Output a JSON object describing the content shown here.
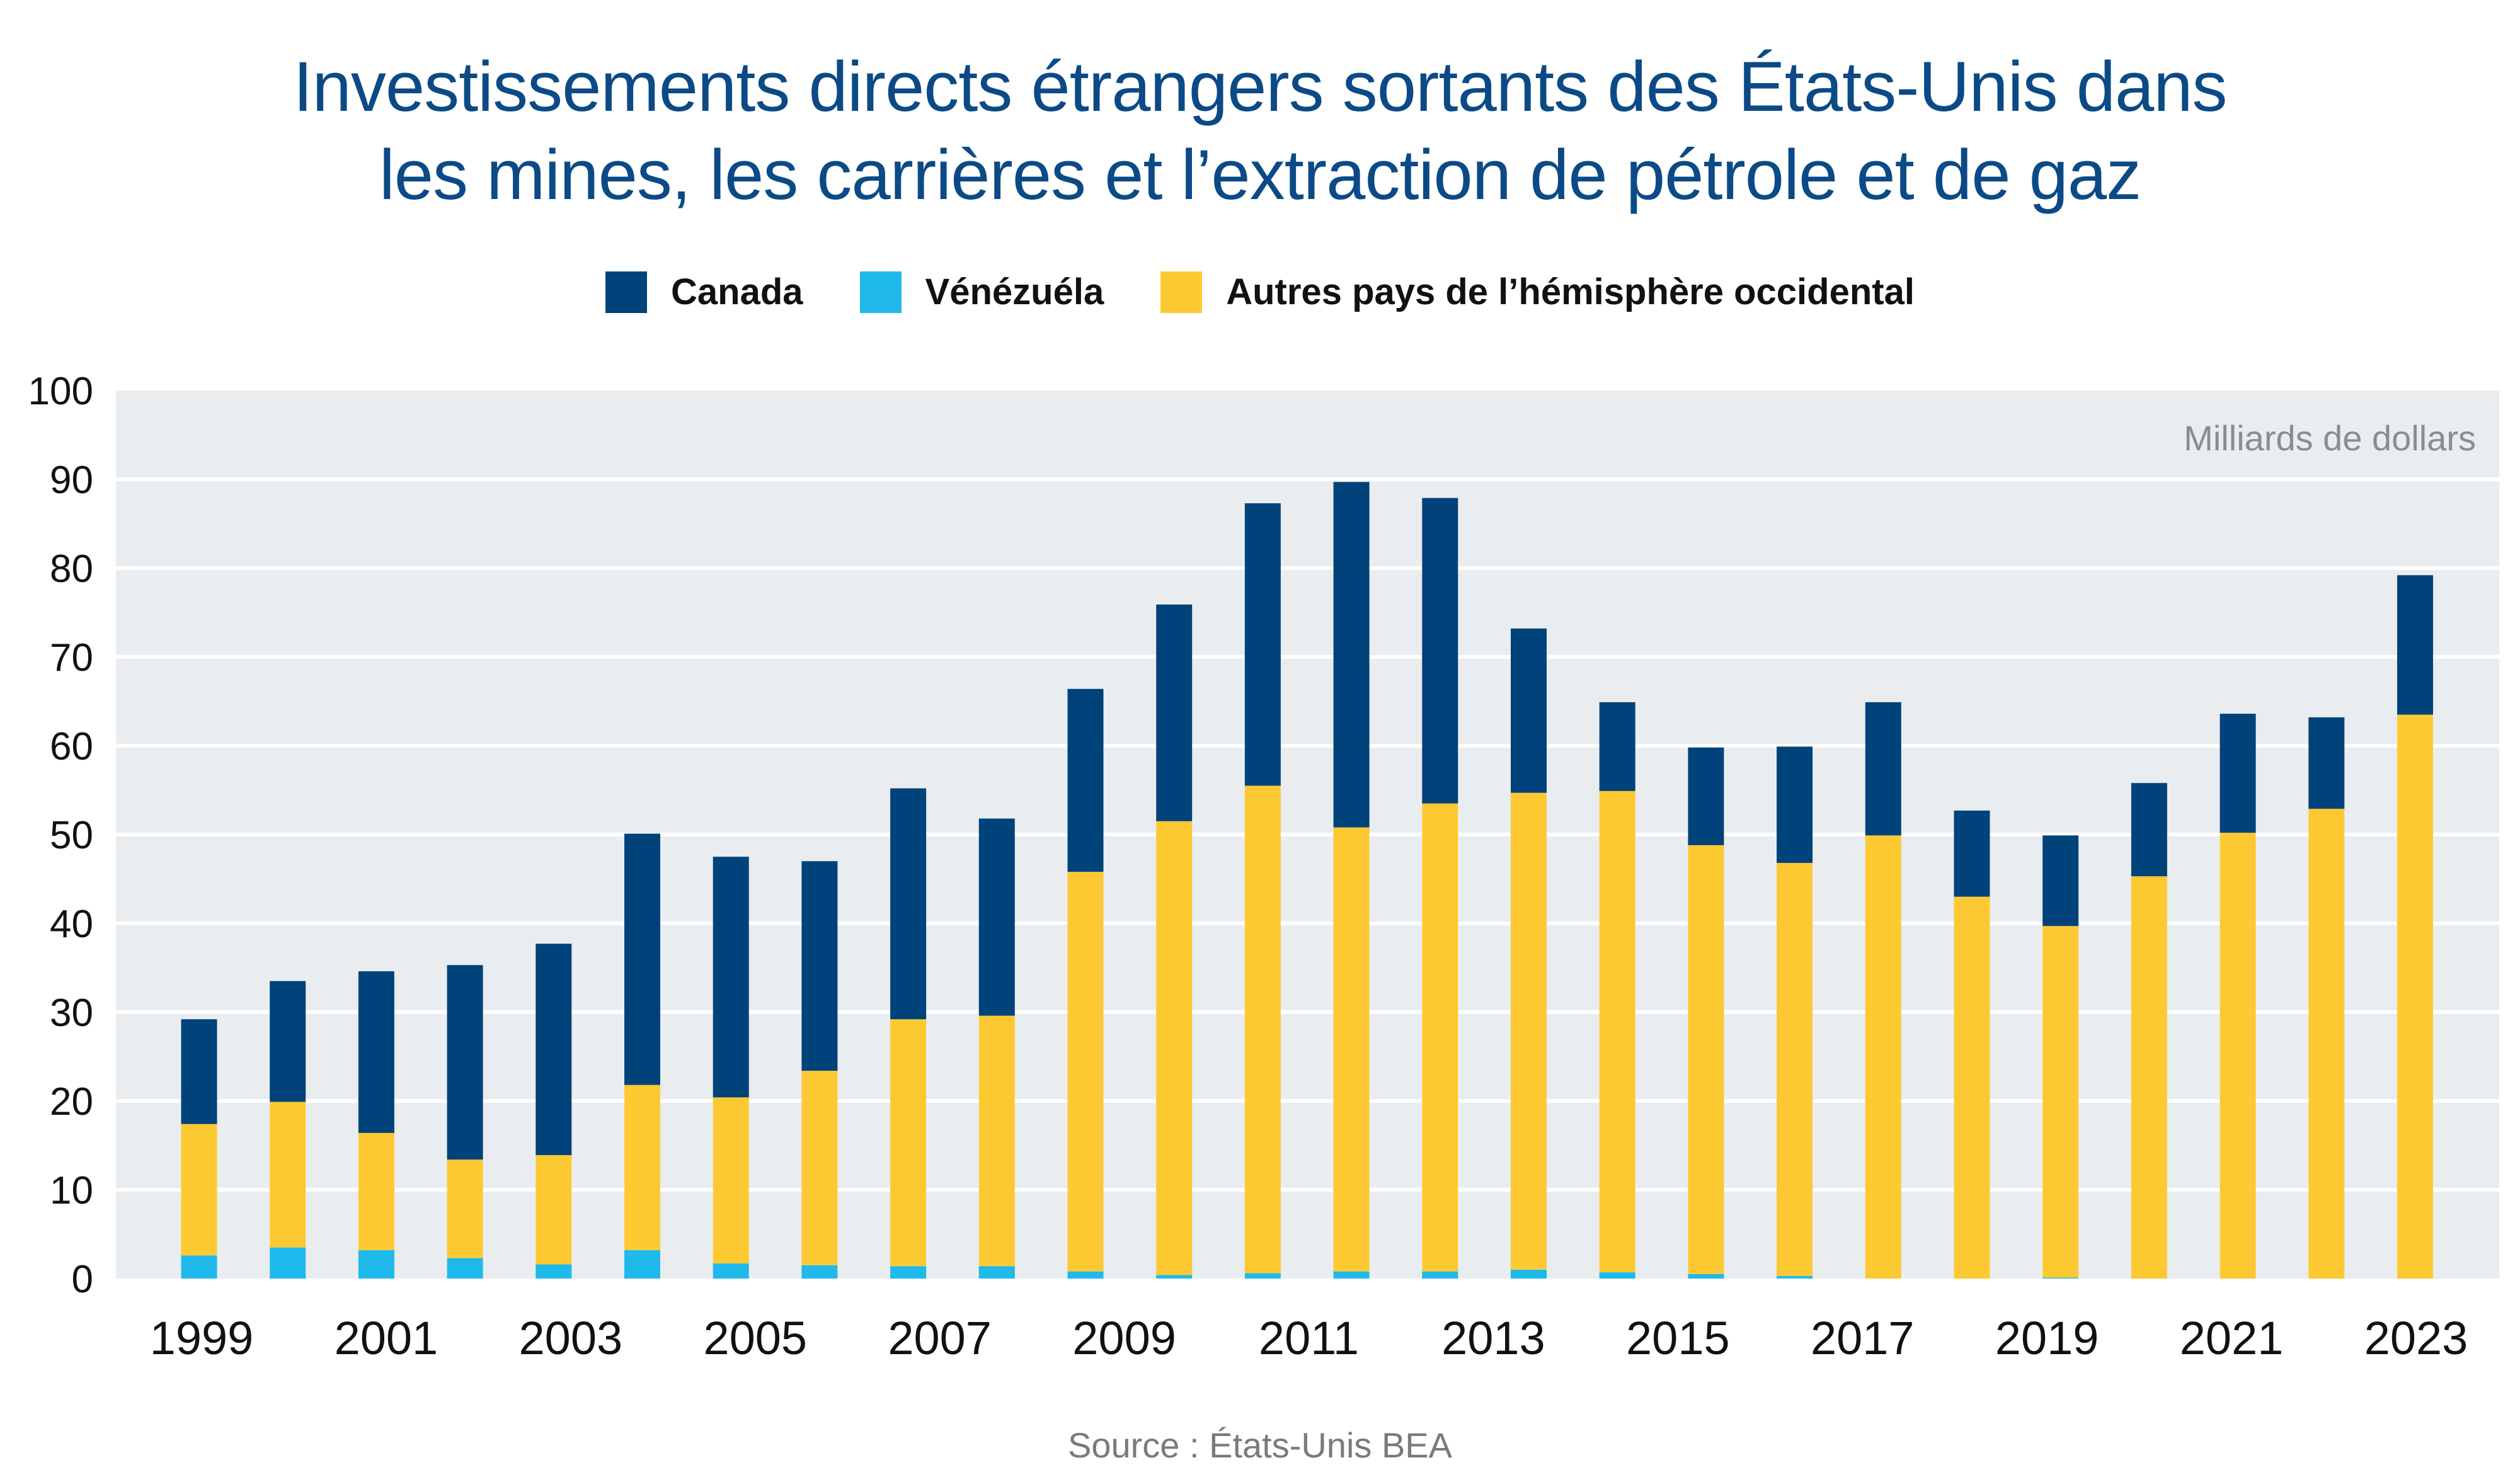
{
  "title_lines": [
    "Investissements directs étrangers sortants des États-Unis dans",
    "les mines, les carrières et l’extraction de pétrole et de gaz"
  ],
  "source": "Source : États-Unis BEA",
  "chart_data": {
    "type": "bar",
    "stacked": true,
    "title": "Investissements directs étrangers sortants des États-Unis dans les mines, les carrières et l’extraction de pétrole et de gaz",
    "unit_label": "Milliards de dollars",
    "ylim": [
      0,
      100
    ],
    "y_ticks": [
      0,
      10,
      20,
      30,
      40,
      50,
      60,
      70,
      80,
      90,
      100
    ],
    "x_tick_labels": [
      "1999",
      "2001",
      "2003",
      "2005",
      "2007",
      "2009",
      "2011",
      "2013",
      "2015",
      "2017",
      "2019",
      "2021",
      "2023"
    ],
    "grid": true,
    "legend_placement": "top",
    "series": [
      {
        "name": "Vénézuéla",
        "color": "#1fb9ec",
        "values": [
          2.6,
          3.5,
          3.2,
          2.3,
          1.6,
          3.2,
          1.7,
          1.5,
          1.4,
          1.4,
          0.8,
          0.4,
          0.6,
          0.8,
          0.8,
          1.0,
          0.7,
          0.5,
          0.3,
          0.0,
          0.0,
          0.1,
          0.0,
          0.0,
          0.0,
          0.0
        ]
      },
      {
        "name": "Autres pays de l’hémisphère occidental",
        "color": "#fdc933",
        "values": [
          14.8,
          16.4,
          13.2,
          11.1,
          12.3,
          18.6,
          18.7,
          21.9,
          27.8,
          28.2,
          45.0,
          51.1,
          54.9,
          50.0,
          52.7,
          53.7,
          54.2,
          48.3,
          46.5,
          49.9,
          43.0,
          39.6,
          45.3,
          50.2,
          52.9,
          63.5
        ]
      },
      {
        "name": "Canada",
        "color": "#00427a",
        "values": [
          11.8,
          13.6,
          18.2,
          21.9,
          23.8,
          28.3,
          27.1,
          23.6,
          26.0,
          22.2,
          20.6,
          24.4,
          31.8,
          38.9,
          34.4,
          18.5,
          10.0,
          11.0,
          13.1,
          15.0,
          9.7,
          10.2,
          10.5,
          13.4,
          10.3,
          15.7
        ]
      }
    ],
    "colors": {
      "plot_background": "#e9edf0",
      "title": "#0b4a86"
    }
  }
}
